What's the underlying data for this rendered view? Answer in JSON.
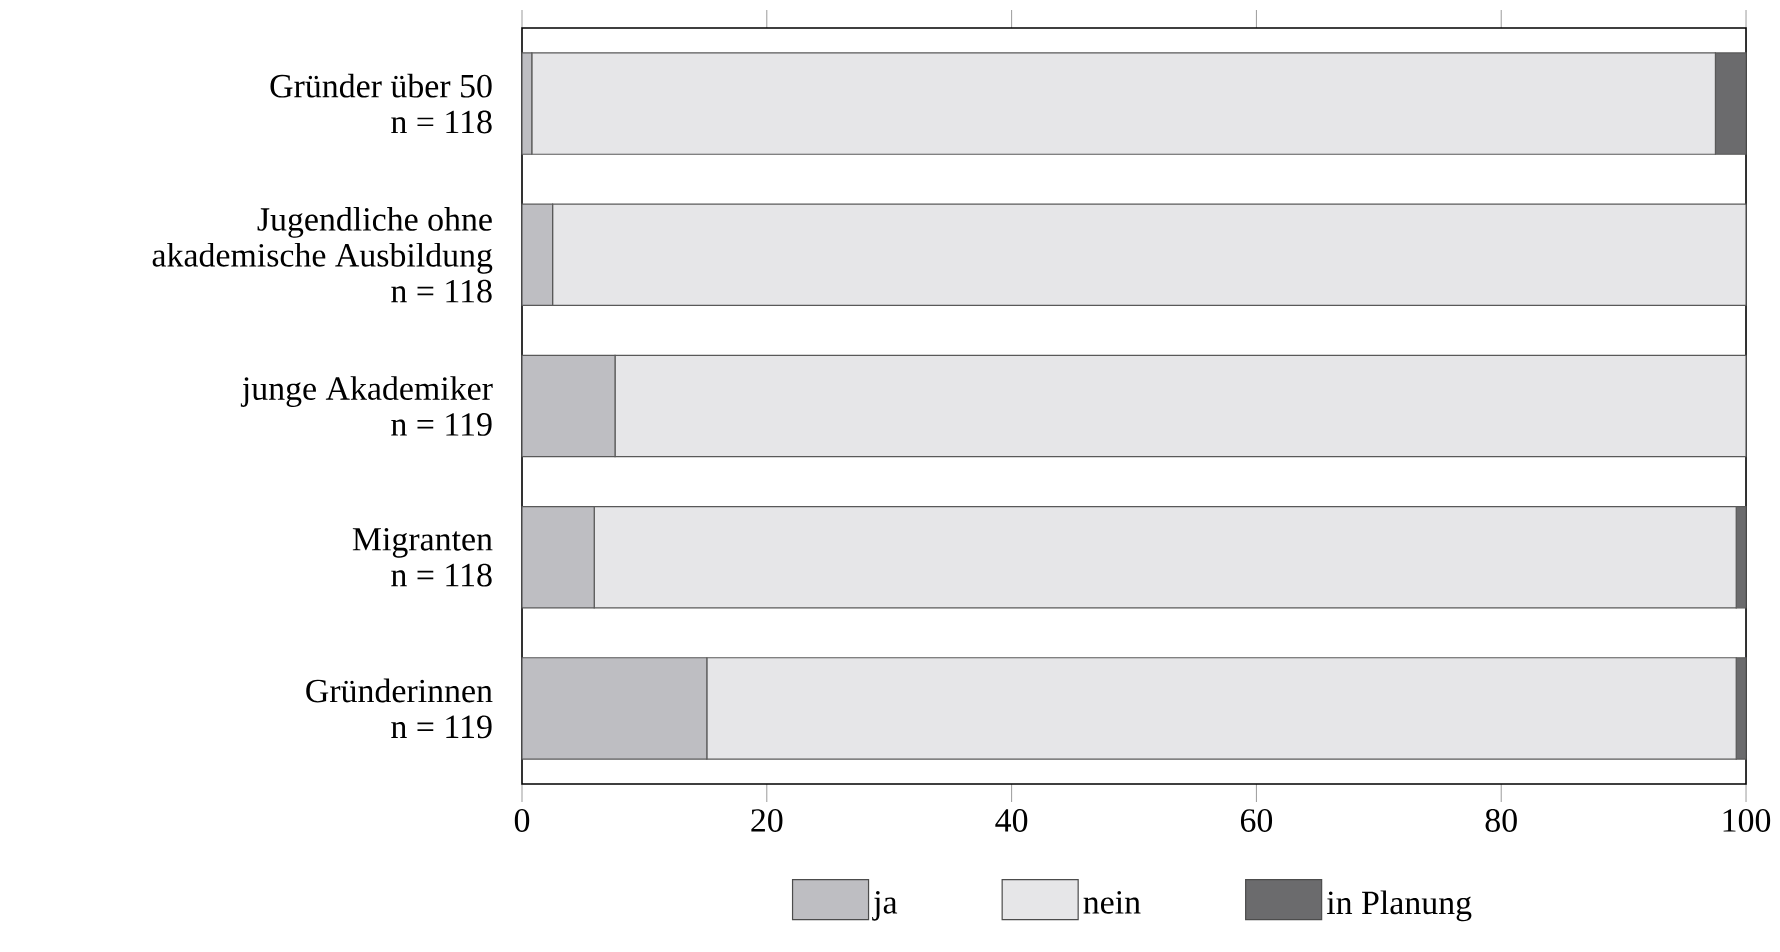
{
  "chart_data": {
    "type": "bar",
    "orientation": "horizontal",
    "stacked": true,
    "categories": [
      "Gründer über 50\nn = 118",
      "Jugendliche ohne\nakademische Ausbildung\nn = 118",
      "junge Akademiker\nn = 119",
      "Migranten\nn = 118",
      "Gründerinnen\nn = 119"
    ],
    "series": [
      {
        "name": "ja",
        "color": "#bebec2",
        "values": [
          0.8,
          2.5,
          7.6,
          5.9,
          15.1
        ]
      },
      {
        "name": "nein",
        "color": "#e6e6e8",
        "values": [
          96.7,
          97.5,
          92.4,
          93.3,
          84.1
        ]
      },
      {
        "name": "in Planung",
        "color": "#6b6b6d",
        "values": [
          2.5,
          0,
          0,
          0.8,
          0.8
        ]
      }
    ],
    "xlim": [
      0,
      100
    ],
    "xticks": [
      0,
      20,
      40,
      60,
      80,
      100
    ],
    "legend": "bottom"
  }
}
